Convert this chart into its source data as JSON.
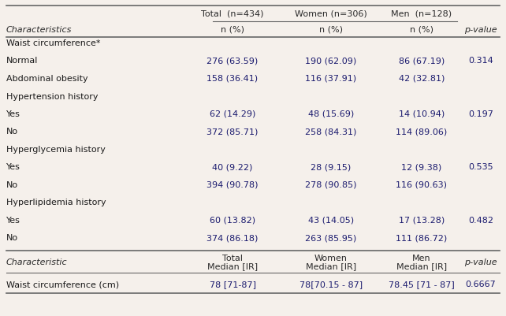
{
  "bg_color": "#f5f0eb",
  "header_row1": [
    "",
    "Total  (n=434)",
    "Women (n=306)",
    "Men  (n=128)",
    ""
  ],
  "header_row2": [
    "Characteristics",
    "n (%)",
    "n (%)",
    "n (%)",
    "p-value"
  ],
  "rows": [
    {
      "label": "Waist circumference*",
      "values": [
        "",
        "",
        "",
        ""
      ],
      "is_section": true
    },
    {
      "label": "Normal",
      "values": [
        "276 (63.59)",
        "190 (62.09)",
        "86 (67.19)",
        "0.314"
      ],
      "is_section": false
    },
    {
      "label": "Abdominal obesity",
      "values": [
        "158 (36.41)",
        "116 (37.91)",
        "42 (32.81)",
        ""
      ],
      "is_section": false
    },
    {
      "label": "Hypertension history",
      "values": [
        "",
        "",
        "",
        ""
      ],
      "is_section": true
    },
    {
      "label": "Yes",
      "values": [
        "62 (14.29)",
        "48 (15.69)",
        "14 (10.94)",
        "0.197"
      ],
      "is_section": false
    },
    {
      "label": "No",
      "values": [
        "372 (85.71)",
        "258 (84.31)",
        "114 (89.06)",
        ""
      ],
      "is_section": false
    },
    {
      "label": "Hyperglycemia history",
      "values": [
        "",
        "",
        "",
        ""
      ],
      "is_section": true
    },
    {
      "label": "Yes",
      "values": [
        "40 (9.22)",
        "28 (9.15)",
        "12 (9.38)",
        "0.535"
      ],
      "is_section": false
    },
    {
      "label": "No",
      "values": [
        "394 (90.78)",
        "278 (90.85)",
        "116 (90.63)",
        ""
      ],
      "is_section": false
    },
    {
      "label": "Hyperlipidemia history",
      "values": [
        "",
        "",
        "",
        ""
      ],
      "is_section": true
    },
    {
      "label": "Yes",
      "values": [
        "60 (13.82)",
        "43 (14.05)",
        "17 (13.28)",
        "0.482"
      ],
      "is_section": false
    },
    {
      "label": "No",
      "values": [
        "374 (86.18)",
        "263 (85.95)",
        "111 (86.72)",
        ""
      ],
      "is_section": false
    }
  ],
  "footer_header": [
    "Characteristic",
    "Total",
    "Women",
    "Men",
    "p-value"
  ],
  "footer_header2": [
    "",
    "Median [IR]",
    "Median [IR]",
    "Median [IR]",
    ""
  ],
  "footer_row": [
    "Waist circumference (cm)",
    "78 [71-87]",
    "78[70.15 - 87]",
    "78.45 [71 - 87]",
    "0.6667"
  ],
  "text_color_label": "#2a2a2a",
  "text_color_data": "#1a1a6e",
  "text_color_section": "#1a1a1a",
  "line_color": "#666666",
  "font_size": 8.0,
  "header_font_size": 8.0
}
